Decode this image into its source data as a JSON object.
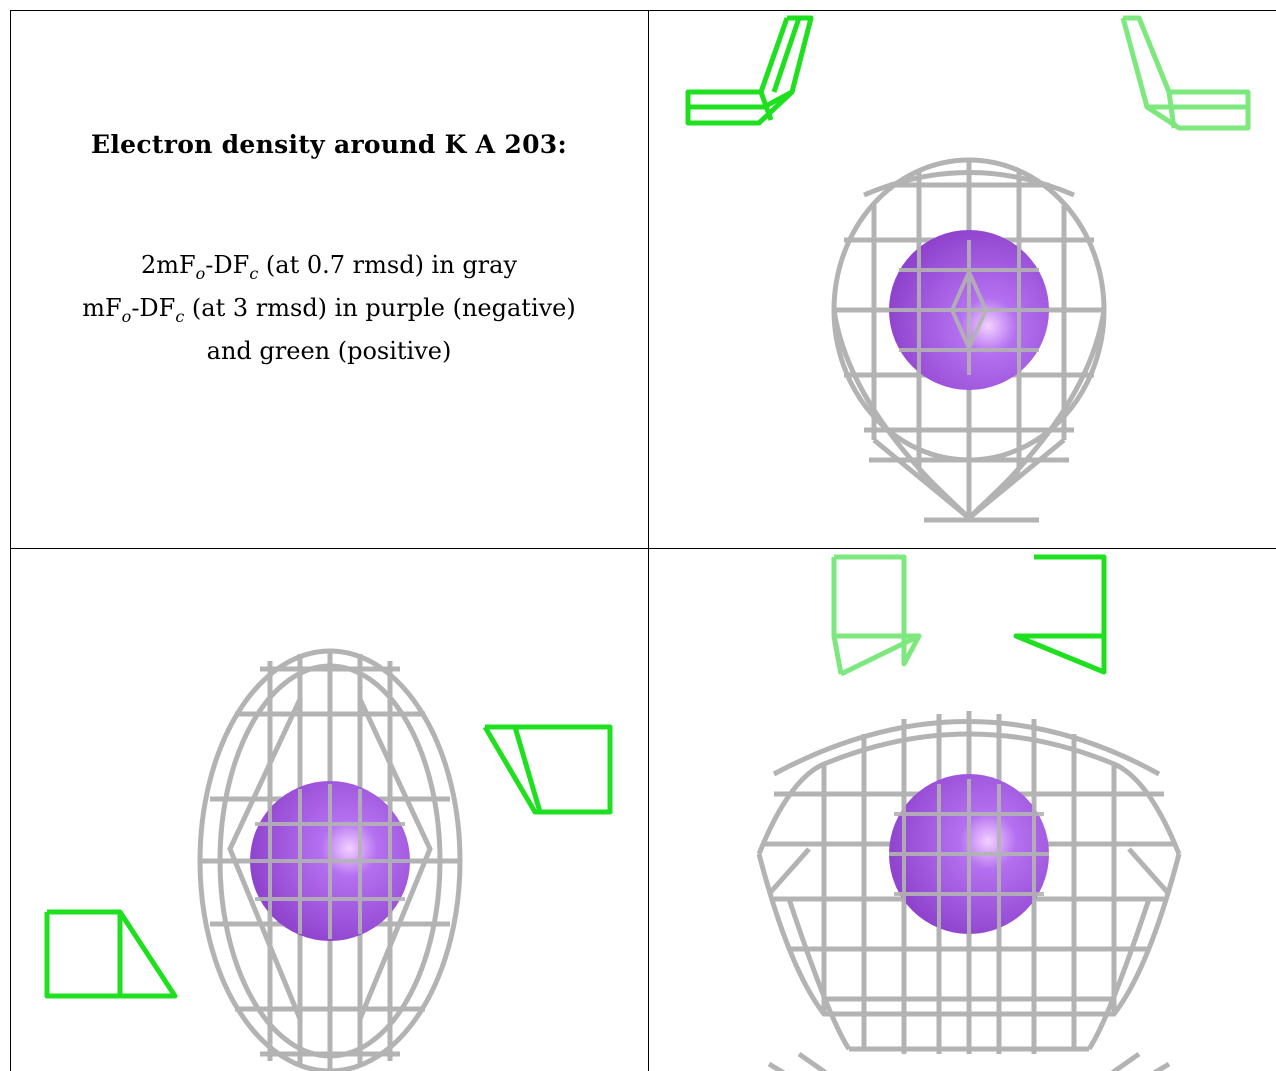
{
  "caption": {
    "title": "Electron density around K A 203:",
    "line1": {
      "pre": "2mF",
      "sub1": "o",
      "mid": "-DF",
      "sub2": "c",
      "post": " (at 0.7 rmsd) in gray"
    },
    "line2": {
      "pre": "mF",
      "sub1": "o",
      "mid": "-DF",
      "sub2": "c",
      "post": " (at 3 rmsd) in purple (negative)"
    },
    "line3": "and green (positive)"
  },
  "colors": {
    "mesh_gray": "#b3b3b3",
    "mesh_dark": "#6e6e6e",
    "positive_green": "#1ee01e",
    "positive_green_light": "#7de87d",
    "ion_purple": "#9a4fd6",
    "ion_purple_light": "#e3b3ff",
    "border": "#000000"
  },
  "views": [
    {
      "name": "view-1",
      "ion": "K",
      "icon": "density-mesh-icon"
    },
    {
      "name": "view-2",
      "ion": "K",
      "icon": "density-mesh-icon"
    },
    {
      "name": "view-3",
      "ion": "K",
      "icon": "density-mesh-icon"
    }
  ]
}
